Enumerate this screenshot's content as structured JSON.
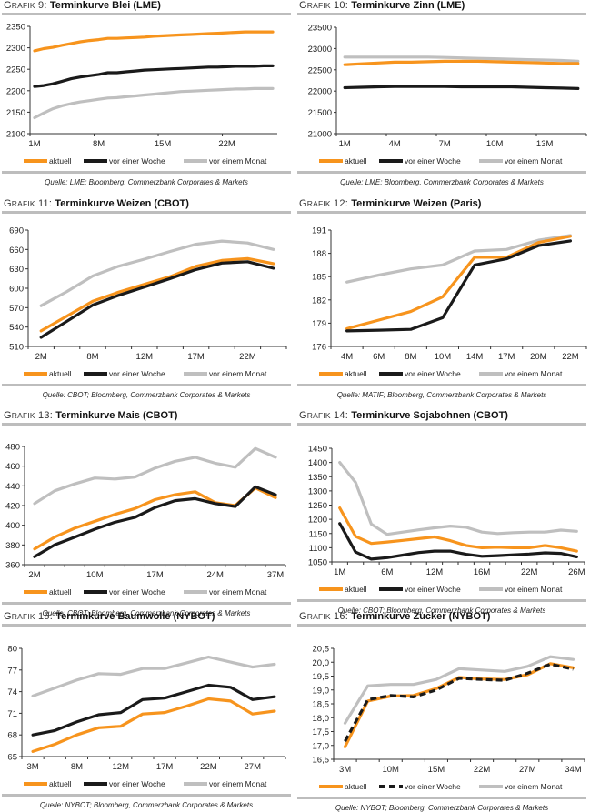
{
  "colors": {
    "aktuell": "#f7941d",
    "woche": "#1a1a1a",
    "monat": "#bfbfbf",
    "rule": "#bdbdbd"
  },
  "chart_data": [
    {
      "id": "g9",
      "type": "line",
      "prefix": "Grafik 9:",
      "title": "Terminkurve Blei (LME)",
      "source": "Quelle: LME; Bloomberg, Commerzbank Corporates & Markets",
      "ylim": [
        2100,
        2350
      ],
      "yticks": [
        "2100",
        "2150",
        "2200",
        "2250",
        "2300",
        "2350"
      ],
      "xlabels": [
        "1M",
        "8M",
        "15M",
        "22M"
      ],
      "n": 27,
      "legend": [
        "aktuell",
        "vor einer Woche",
        "vor einem Monat"
      ],
      "series": [
        {
          "name": "aktuell",
          "key": "aktuell",
          "values": [
            2293,
            2298,
            2301,
            2306,
            2310,
            2314,
            2317,
            2319,
            2322,
            2322,
            2323,
            2324,
            2325,
            2327,
            2328,
            2329,
            2330,
            2331,
            2332,
            2333,
            2334,
            2335,
            2336,
            2337,
            2337,
            2337,
            2337
          ]
        },
        {
          "name": "vor einer Woche",
          "key": "woche",
          "values": [
            2210,
            2212,
            2216,
            2222,
            2228,
            2232,
            2235,
            2238,
            2242,
            2242,
            2244,
            2246,
            2248,
            2249,
            2250,
            2251,
            2252,
            2253,
            2254,
            2255,
            2255,
            2256,
            2257,
            2257,
            2257,
            2258,
            2258
          ]
        },
        {
          "name": "vor einem Monat",
          "key": "monat",
          "values": [
            2137,
            2148,
            2158,
            2165,
            2170,
            2174,
            2177,
            2180,
            2183,
            2184,
            2186,
            2188,
            2190,
            2192,
            2194,
            2196,
            2198,
            2199,
            2200,
            2201,
            2202,
            2203,
            2204,
            2204,
            2205,
            2205,
            2205
          ]
        }
      ]
    },
    {
      "id": "g10",
      "type": "line",
      "prefix": "Grafik 10:",
      "title": "Terminkurve Zinn (LME)",
      "source": "Quelle: LME; Bloomberg, Commerzbank Corporates & Markets",
      "ylim": [
        21000,
        23500
      ],
      "yticks": [
        "21000",
        "21500",
        "22000",
        "22500",
        "23000",
        "23500"
      ],
      "xlabels": [
        "1M",
        "4M",
        "7M",
        "10M",
        "13M"
      ],
      "n": 15,
      "legend": [
        "aktuell",
        "vor einer Woche",
        "vor einem Monat"
      ],
      "series": [
        {
          "name": "aktuell",
          "key": "aktuell",
          "values": [
            22620,
            22640,
            22660,
            22680,
            22680,
            22690,
            22700,
            22700,
            22700,
            22690,
            22680,
            22670,
            22660,
            22650,
            22650
          ]
        },
        {
          "name": "vor einer Woche",
          "key": "woche",
          "values": [
            22080,
            22090,
            22100,
            22110,
            22110,
            22110,
            22110,
            22100,
            22100,
            22100,
            22100,
            22090,
            22080,
            22070,
            22060
          ]
        },
        {
          "name": "vor einem Monat",
          "key": "monat",
          "values": [
            22800,
            22800,
            22800,
            22800,
            22800,
            22800,
            22790,
            22780,
            22770,
            22760,
            22750,
            22740,
            22730,
            22720,
            22700
          ]
        }
      ]
    },
    {
      "id": "g11",
      "type": "line",
      "prefix": "Grafik 11:",
      "title": "Terminkurve Weizen (CBOT)",
      "source": "Quelle: CBOT; Bloomberg, Commerzbank Corporates & Markets",
      "ylim": [
        510,
        690
      ],
      "yticks": [
        "510",
        "540",
        "570",
        "600",
        "630",
        "660",
        "690"
      ],
      "xlabels": [
        "2M",
        "8M",
        "12M",
        "17M",
        "22M"
      ],
      "xlabelIdx": [
        0,
        2,
        4,
        6,
        8
      ],
      "n": 10,
      "legend": [
        "aktuell",
        "vor einer Woche",
        "vor einem Monat"
      ],
      "series": [
        {
          "name": "aktuell",
          "key": "aktuell",
          "values": [
            534,
            557,
            580,
            594,
            606,
            618,
            634,
            643,
            646,
            638
          ]
        },
        {
          "name": "vor einer Woche",
          "key": "woche",
          "values": [
            524,
            549,
            574,
            589,
            602,
            615,
            629,
            639,
            641,
            631
          ]
        },
        {
          "name": "vor einem Monat",
          "key": "monat",
          "values": [
            573,
            595,
            619,
            634,
            645,
            657,
            668,
            673,
            670,
            660
          ]
        }
      ]
    },
    {
      "id": "g12",
      "type": "line",
      "prefix": "Grafik 12:",
      "title": "Terminkurve Weizen (Paris)",
      "source": "Quelle: MATIF; Bloomberg, Commerzbank Corporates & Markets",
      "ylim": [
        176,
        191
      ],
      "yticks": [
        "176",
        "179",
        "182",
        "185",
        "188",
        "191"
      ],
      "xlabels": [
        "4M",
        "6M",
        "8M",
        "10M",
        "14M",
        "17M",
        "20M",
        "22M"
      ],
      "n": 8,
      "legend": [
        "aktuell",
        "vor einer Woche",
        "vor einem Monat"
      ],
      "series": [
        {
          "name": "aktuell",
          "key": "aktuell",
          "values": [
            178.3,
            179.4,
            180.5,
            182.4,
            187.5,
            187.5,
            189.4,
            190.2
          ]
        },
        {
          "name": "vor einer Woche",
          "key": "woche",
          "values": [
            178.0,
            178.1,
            178.2,
            179.7,
            186.5,
            187.3,
            189.0,
            189.6
          ]
        },
        {
          "name": "vor einem Monat",
          "key": "monat",
          "values": [
            184.3,
            185.2,
            186.0,
            186.5,
            188.3,
            188.5,
            189.7,
            190.3
          ]
        }
      ]
    },
    {
      "id": "g13",
      "type": "line",
      "prefix": "Grafik 13:",
      "title": "Terminkurve Mais (CBOT)",
      "source": "Quelle: CBOT; Bloomberg, Commerzbank Corporates & Markets",
      "ylim": [
        360,
        480
      ],
      "yticks": [
        "360",
        "380",
        "400",
        "420",
        "440",
        "460",
        "480"
      ],
      "xlabels": [
        "2M",
        "10M",
        "17M",
        "24M",
        "37M"
      ],
      "xlabelIdx": [
        0,
        3,
        6,
        9,
        12
      ],
      "n": 13,
      "legend": [
        "aktuell",
        "vor einer Woche",
        "vor einem Monat"
      ],
      "series": [
        {
          "name": "aktuell",
          "key": "aktuell",
          "values": [
            376,
            388,
            397,
            404,
            411,
            417,
            426,
            431,
            434,
            423,
            420,
            438,
            428
          ]
        },
        {
          "name": "vor einer Woche",
          "key": "woche",
          "values": [
            368,
            380,
            388,
            396,
            403,
            408,
            418,
            425,
            427,
            422,
            419,
            439,
            431
          ]
        },
        {
          "name": "vor einem Monat",
          "key": "monat",
          "values": [
            422,
            435,
            442,
            448,
            447,
            449,
            458,
            465,
            469,
            463,
            459,
            478,
            469
          ]
        }
      ]
    },
    {
      "id": "g14",
      "type": "line",
      "prefix": "Grafik 14:",
      "title": "Terminkurve Sojabohnen (CBOT)",
      "source": "Quelle: CBOT; Bloomberg, Commerzbank Corporates & Markets",
      "ylim": [
        1050,
        1450
      ],
      "yticks": [
        "1050",
        "1100",
        "1150",
        "1200",
        "1250",
        "1300",
        "1350",
        "1400",
        "1450"
      ],
      "xlabels": [
        "1M",
        "6M",
        "12M",
        "16M",
        "22M",
        "26M"
      ],
      "xlabelIdx": [
        0,
        3,
        6,
        9,
        12,
        15
      ],
      "n": 16,
      "legend": [
        "aktuell",
        "vor einer Woche",
        "vor einem Monat"
      ],
      "series": [
        {
          "name": "aktuell",
          "key": "aktuell",
          "values": [
            1240,
            1140,
            1115,
            1120,
            1126,
            1132,
            1138,
            1125,
            1108,
            1100,
            1102,
            1100,
            1100,
            1108,
            1100,
            1088
          ]
        },
        {
          "name": "vor einer Woche",
          "key": "woche",
          "values": [
            1185,
            1085,
            1060,
            1065,
            1074,
            1083,
            1088,
            1088,
            1077,
            1070,
            1072,
            1075,
            1078,
            1082,
            1080,
            1068
          ]
        },
        {
          "name": "vor einem Monat",
          "key": "monat",
          "values": [
            1400,
            1330,
            1183,
            1147,
            1155,
            1163,
            1170,
            1176,
            1172,
            1155,
            1150,
            1153,
            1155,
            1155,
            1162,
            1158
          ]
        }
      ]
    },
    {
      "id": "g15",
      "type": "line",
      "prefix": "Grafik 15:",
      "title": "Terminkurve Baumwolle (NYBOT)",
      "source": "Quelle: NYBOT; Bloomberg, Commerzbank Corporates & Markets",
      "ylim": [
        65,
        80
      ],
      "yticks": [
        "65",
        "68",
        "71",
        "74",
        "77",
        "80"
      ],
      "xlabels": [
        "3M",
        "8M",
        "12M",
        "17M",
        "22M",
        "27M"
      ],
      "xlabelIdx": [
        0,
        2,
        4,
        6,
        8,
        10
      ],
      "n": 12,
      "legend": [
        "aktuell",
        "vor einer Woche",
        "vor einem Monat"
      ],
      "series": [
        {
          "name": "aktuell",
          "key": "aktuell",
          "values": [
            65.7,
            66.7,
            68.0,
            69.0,
            69.2,
            70.9,
            71.1,
            72.0,
            73.0,
            72.7,
            70.9,
            71.3
          ]
        },
        {
          "name": "vor einer Woche",
          "key": "woche",
          "values": [
            68.0,
            68.6,
            69.8,
            70.8,
            71.1,
            72.9,
            73.1,
            74.0,
            74.9,
            74.6,
            72.9,
            73.3
          ]
        },
        {
          "name": "vor einem Monat",
          "key": "monat",
          "values": [
            73.4,
            74.5,
            75.6,
            76.5,
            76.4,
            77.2,
            77.2,
            78.0,
            78.8,
            78.1,
            77.4,
            77.8
          ]
        }
      ]
    },
    {
      "id": "g16",
      "type": "line",
      "prefix": "Grafik 16:",
      "title": "Terminkurve Zucker (NYBOT)",
      "source": "Quelle: NYBOT; Bloomberg, Commerzbank Corporates & Markets",
      "ylim": [
        16.5,
        20.5
      ],
      "yticks": [
        "16,5",
        "17,0",
        "17,5",
        "18,0",
        "18,5",
        "19,0",
        "19,5",
        "20,0",
        "20,5"
      ],
      "xlabels": [
        "3M",
        "10M",
        "15M",
        "22M",
        "27M",
        "34M"
      ],
      "xlabelIdx": [
        0,
        2,
        4,
        6,
        8,
        10
      ],
      "n": 11,
      "dashedWoche": true,
      "legend": [
        "aktuell",
        "vor einer Woche",
        "vor einem Monat"
      ],
      "series": [
        {
          "name": "aktuell",
          "key": "aktuell",
          "values": [
            16.95,
            18.6,
            18.78,
            18.8,
            19.05,
            19.45,
            19.4,
            19.38,
            19.55,
            19.95,
            19.8
          ]
        },
        {
          "name": "vor einer Woche",
          "key": "woche",
          "values": [
            17.15,
            18.65,
            18.8,
            18.75,
            19.0,
            19.42,
            19.38,
            19.35,
            19.6,
            19.93,
            19.75
          ]
        },
        {
          "name": "vor einem Monat",
          "key": "monat",
          "values": [
            17.8,
            19.15,
            19.2,
            19.2,
            19.38,
            19.77,
            19.72,
            19.67,
            19.85,
            20.2,
            20.1
          ]
        }
      ]
    }
  ]
}
